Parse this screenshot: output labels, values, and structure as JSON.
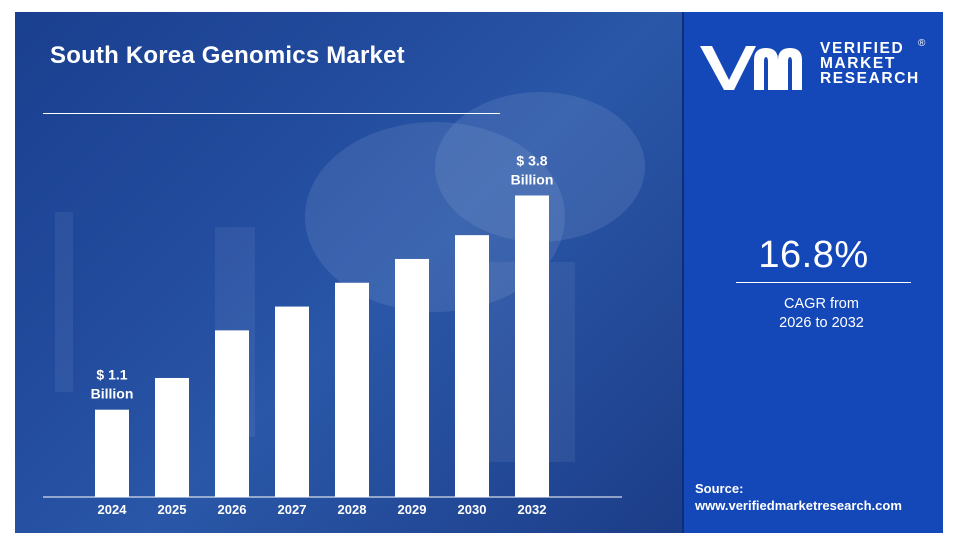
{
  "title": "South Korea Genomics Market",
  "brand": {
    "line1": "VERIFIED",
    "line2": "MARKET",
    "line3": "RESEARCH",
    "registered_mark": "®"
  },
  "cagr": {
    "value": "16.8%",
    "label_line1": "CAGR from",
    "label_line2": "2026 to 2032"
  },
  "source": {
    "label": "Source:",
    "url": "www.verifiedmarketresearch.com"
  },
  "colors": {
    "left_panel": "#234c9e",
    "right_panel": "#1448b8",
    "bars": "#ffffff",
    "text": "#ffffff"
  },
  "chart_data": {
    "type": "bar",
    "title": "South Korea Genomics Market",
    "categories": [
      "2024",
      "2025",
      "2026",
      "2027",
      "2028",
      "2029",
      "2030",
      "2032"
    ],
    "values": [
      1.1,
      1.5,
      2.1,
      2.4,
      2.7,
      3.0,
      3.3,
      3.8
    ],
    "unit": "$ Billion",
    "ylim": [
      0,
      4.6
    ],
    "grid": false,
    "legend": "none",
    "annotations": [
      {
        "category": "2024",
        "line1": "$ 1.1",
        "line2": "Billion"
      },
      {
        "category": "2032",
        "line1": "$ 3.8",
        "line2": "Billion"
      }
    ]
  }
}
